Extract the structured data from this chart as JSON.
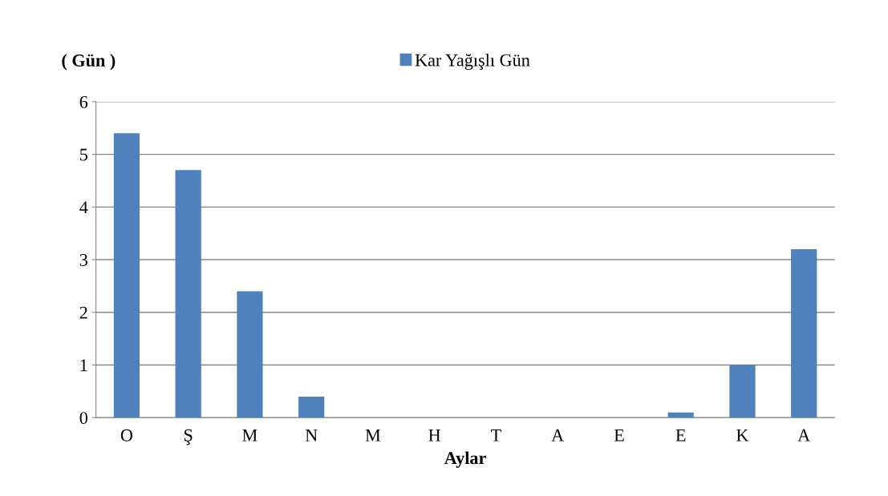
{
  "chart_data": {
    "type": "bar",
    "xlabel": "Aylar",
    "ylabel": "( Gün )",
    "categories": [
      "O",
      "Ş",
      "M",
      "N",
      "M",
      "H",
      "T",
      "A",
      "E",
      "E",
      "K",
      "A"
    ],
    "series": [
      {
        "name": "Kar Yağışlı Gün",
        "color": "#4f81bd",
        "values": [
          5.4,
          4.7,
          2.4,
          0.4,
          0,
          0,
          0,
          0,
          0,
          0.1,
          1.0,
          3.2
        ]
      }
    ],
    "ylim": [
      0,
      6
    ],
    "yticks": [
      0,
      1,
      2,
      3,
      4,
      5,
      6
    ],
    "grid": "y",
    "legend": "top"
  }
}
